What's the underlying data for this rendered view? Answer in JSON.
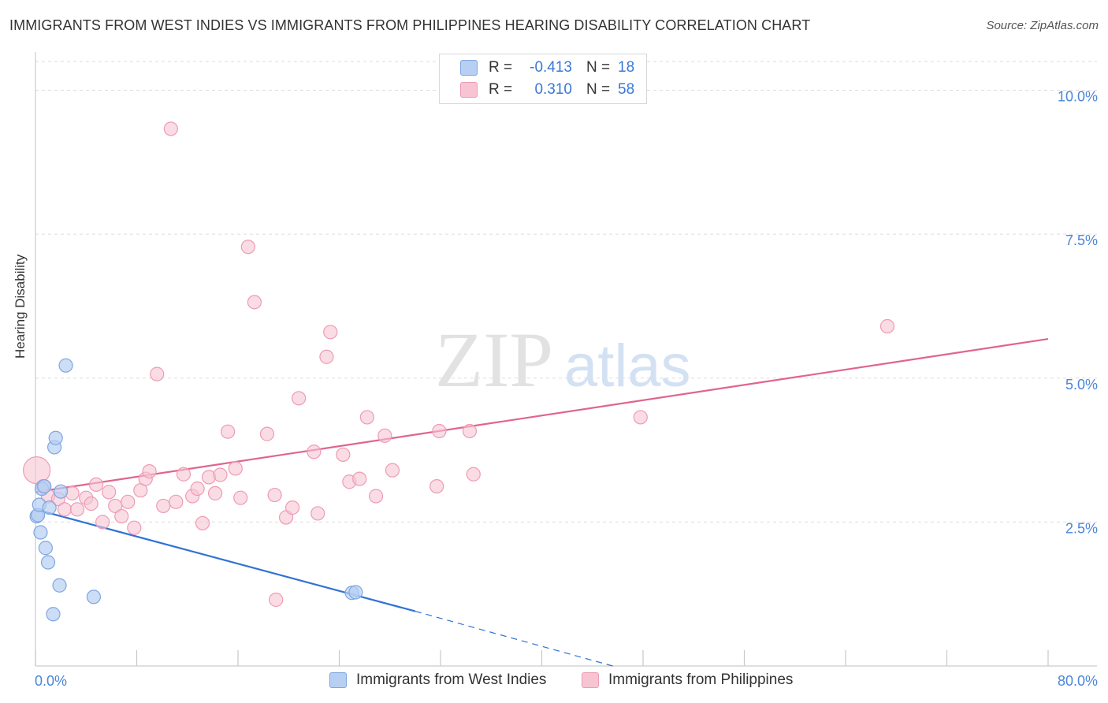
{
  "title": "IMMIGRANTS FROM WEST INDIES VS IMMIGRANTS FROM PHILIPPINES HEARING DISABILITY CORRELATION CHART",
  "source": "Source: ZipAtlas.com",
  "watermark": {
    "zip": "ZIP",
    "atlas": "atlas"
  },
  "legend_stats": [
    {
      "r_label": "R =",
      "r_value": "-0.413",
      "n_label": "N =",
      "n_value": "18"
    },
    {
      "r_label": "R =",
      "r_value": "0.310",
      "n_label": "N =",
      "n_value": "58"
    }
  ],
  "colors": {
    "blue_fill": "#b7cff2",
    "blue_stroke": "#7fa6e0",
    "blue_line": "#2f72d4",
    "pink_fill": "#f7c4d3",
    "pink_stroke": "#ee9bb4",
    "pink_line": "#e0648f",
    "tick_text": "#4a86d9",
    "grid": "#dddddd"
  },
  "chart_data": {
    "type": "scatter",
    "title": "IMMIGRANTS FROM WEST INDIES VS IMMIGRANTS FROM PHILIPPINES HEARING DISABILITY CORRELATION CHART",
    "xlabel": "",
    "ylabel": "Hearing Disability",
    "xlim": [
      0,
      80
    ],
    "ylim": [
      0,
      10.5
    ],
    "x_tick_labels": [
      "0.0%",
      "80.0%"
    ],
    "y_ticks": [
      2.5,
      5.0,
      7.5,
      10.0
    ],
    "y_tick_labels": [
      "2.5%",
      "5.0%",
      "7.5%",
      "10.0%"
    ],
    "grid": true,
    "legend_position": "bottom",
    "series": [
      {
        "name": "Immigrants from West Indies",
        "color": "#b7cff2",
        "points": [
          [
            0.1,
            2.6
          ],
          [
            0.2,
            2.62
          ],
          [
            0.3,
            2.8
          ],
          [
            0.4,
            2.32
          ],
          [
            0.5,
            3.08
          ],
          [
            0.7,
            3.12
          ],
          [
            0.8,
            2.05
          ],
          [
            1.0,
            1.8
          ],
          [
            1.1,
            2.75
          ],
          [
            1.4,
            0.9
          ],
          [
            1.5,
            3.8
          ],
          [
            1.6,
            3.96
          ],
          [
            1.9,
            1.4
          ],
          [
            2.0,
            3.03
          ],
          [
            2.4,
            5.22
          ],
          [
            4.6,
            1.2
          ],
          [
            25.0,
            1.27
          ],
          [
            25.3,
            1.28
          ]
        ],
        "trend": {
          "x": [
            0,
            30
          ],
          "y": [
            2.72,
            0.95
          ],
          "dashed_to": [
            45.6,
            0.0
          ]
        }
      },
      {
        "name": "Immigrants from Philippines",
        "color": "#f7c4d3",
        "points": [
          [
            0.1,
            3.4
          ],
          [
            0.6,
            3.12
          ],
          [
            1.0,
            2.95
          ],
          [
            1.8,
            2.9
          ],
          [
            2.3,
            2.72
          ],
          [
            2.9,
            3.0
          ],
          [
            3.3,
            2.72
          ],
          [
            4.0,
            2.92
          ],
          [
            4.4,
            2.82
          ],
          [
            4.8,
            3.15
          ],
          [
            5.3,
            2.5
          ],
          [
            5.8,
            3.02
          ],
          [
            6.3,
            2.78
          ],
          [
            6.8,
            2.6
          ],
          [
            7.3,
            2.85
          ],
          [
            7.8,
            2.4
          ],
          [
            8.3,
            3.05
          ],
          [
            8.7,
            3.25
          ],
          [
            9.0,
            3.38
          ],
          [
            9.6,
            5.07
          ],
          [
            10.1,
            2.78
          ],
          [
            10.7,
            9.33
          ],
          [
            11.1,
            2.85
          ],
          [
            11.7,
            3.33
          ],
          [
            12.4,
            2.95
          ],
          [
            12.8,
            3.08
          ],
          [
            13.2,
            2.48
          ],
          [
            13.7,
            3.28
          ],
          [
            14.2,
            3.0
          ],
          [
            14.6,
            3.32
          ],
          [
            15.2,
            4.07
          ],
          [
            15.8,
            3.43
          ],
          [
            16.2,
            2.92
          ],
          [
            16.8,
            7.28
          ],
          [
            17.3,
            6.32
          ],
          [
            18.3,
            4.03
          ],
          [
            18.9,
            2.97
          ],
          [
            19.8,
            2.58
          ],
          [
            20.3,
            2.75
          ],
          [
            20.8,
            4.65
          ],
          [
            22.0,
            3.72
          ],
          [
            22.3,
            2.65
          ],
          [
            23.0,
            5.37
          ],
          [
            23.3,
            5.8
          ],
          [
            24.3,
            3.67
          ],
          [
            24.8,
            3.2
          ],
          [
            25.6,
            3.25
          ],
          [
            26.2,
            4.32
          ],
          [
            26.9,
            2.95
          ],
          [
            27.6,
            4.0
          ],
          [
            28.2,
            3.4
          ],
          [
            19.0,
            1.15
          ],
          [
            31.7,
            3.12
          ],
          [
            31.9,
            4.08
          ],
          [
            34.3,
            4.08
          ],
          [
            34.6,
            3.33
          ],
          [
            47.8,
            4.32
          ],
          [
            67.3,
            5.9
          ]
        ],
        "trend": {
          "x": [
            0,
            80
          ],
          "y": [
            3.02,
            5.68
          ]
        }
      }
    ]
  }
}
